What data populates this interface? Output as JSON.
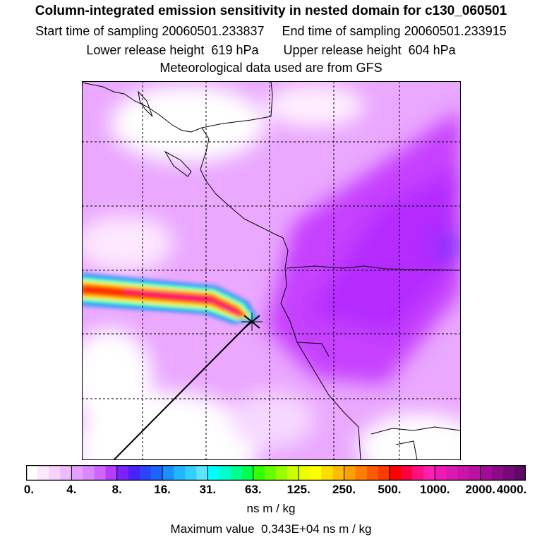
{
  "header": {
    "title": "Column-integrated emission sensitivity in nested domain for c130_060501",
    "line2": "Start time of sampling 20060501.233837     End time of sampling 20060501.233915",
    "line3": "Lower release height  619 hPa       Upper release height  604 hPa",
    "line4": "Meteorological data used are from GFS"
  },
  "colorbar": {
    "labels": [
      "0.",
      "4.",
      "8.",
      "16.",
      "31.",
      "63.",
      "125.",
      "250.",
      "500.",
      "1000.",
      "2000.",
      "4000."
    ],
    "colors": [
      "#ffffff",
      "#fbe8ff",
      "#f6d2ff",
      "#efbaff",
      "#e59fff",
      "#d986ff",
      "#cc66ff",
      "#b63cff",
      "#7a22ff",
      "#4a22ff",
      "#2a44ff",
      "#1b66ff",
      "#1a90ff",
      "#22b4ff",
      "#33d0ff",
      "#5ae6ff",
      "#00ffff",
      "#00ffcc",
      "#00ff90",
      "#00ff50",
      "#33ff00",
      "#66ff00",
      "#99ff00",
      "#ccff00",
      "#eeff00",
      "#ffff00",
      "#ffdd00",
      "#ffbb00",
      "#ffa000",
      "#ff7d00",
      "#ff5a00",
      "#ff3a00",
      "#ff0000",
      "#ff0040",
      "#ff1080",
      "#ff20b0",
      "#ee1ab4",
      "#dd18b0",
      "#cc14a8",
      "#bb10a0",
      "#a20c98",
      "#8c0a88",
      "#760878",
      "#600868"
    ],
    "units": "ns m / kg",
    "max_value": "Maximum value  0.343E+04 ns m / kg"
  },
  "map": {
    "background_color": "#e8a8ff",
    "high_sensitivity_color": "#c040ff",
    "plume_colors": [
      "#2080ff",
      "#00ffcc",
      "#ffff00",
      "#ff8000",
      "#ff0000",
      "#ff0080"
    ],
    "release_marker_icon": "x-marker-icon"
  }
}
